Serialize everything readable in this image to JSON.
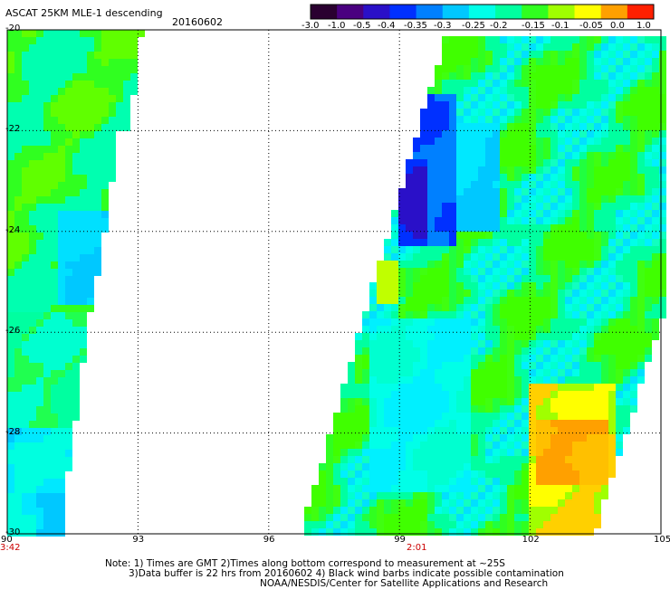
{
  "header": {
    "title": "ASCAT 25KM MLE-1 descending",
    "date": "20160602"
  },
  "colorbar": {
    "labels": [
      "-3.0",
      "-1.0",
      "-0.5",
      "-0.4",
      "-0.35",
      "-0.3",
      "-0.25",
      "-0.2",
      "-0.15",
      "-0.1",
      "-0.05",
      "0.0",
      "1.0"
    ],
    "colors": [
      "#2a0030",
      "#4a0080",
      "#2a10c8",
      "#0030ff",
      "#0080ff",
      "#00c8ff",
      "#00ffe8",
      "#00ffa0",
      "#30ff20",
      "#a0ff00",
      "#ffff00",
      "#ffa000",
      "#ff2000"
    ]
  },
  "axes": {
    "lat_labels": [
      "-20",
      "-22",
      "-24",
      "-26",
      "-28",
      "-30"
    ],
    "lon_labels": [
      "90",
      "93",
      "96",
      "99",
      "102",
      "105"
    ]
  },
  "pass_times": {
    "left": "3:42",
    "right": "2:01"
  },
  "notes": {
    "line1": "Note: 1) Times are GMT 2)Times along bottom correspond to measurement at ~25S",
    "line2": "3)Data buffer is 22 hrs from 20160602 4) Black wind barbs indicate possible contamination",
    "line3": "NOAA/NESDIS/Center for Satellite Applications and Research"
  }
}
